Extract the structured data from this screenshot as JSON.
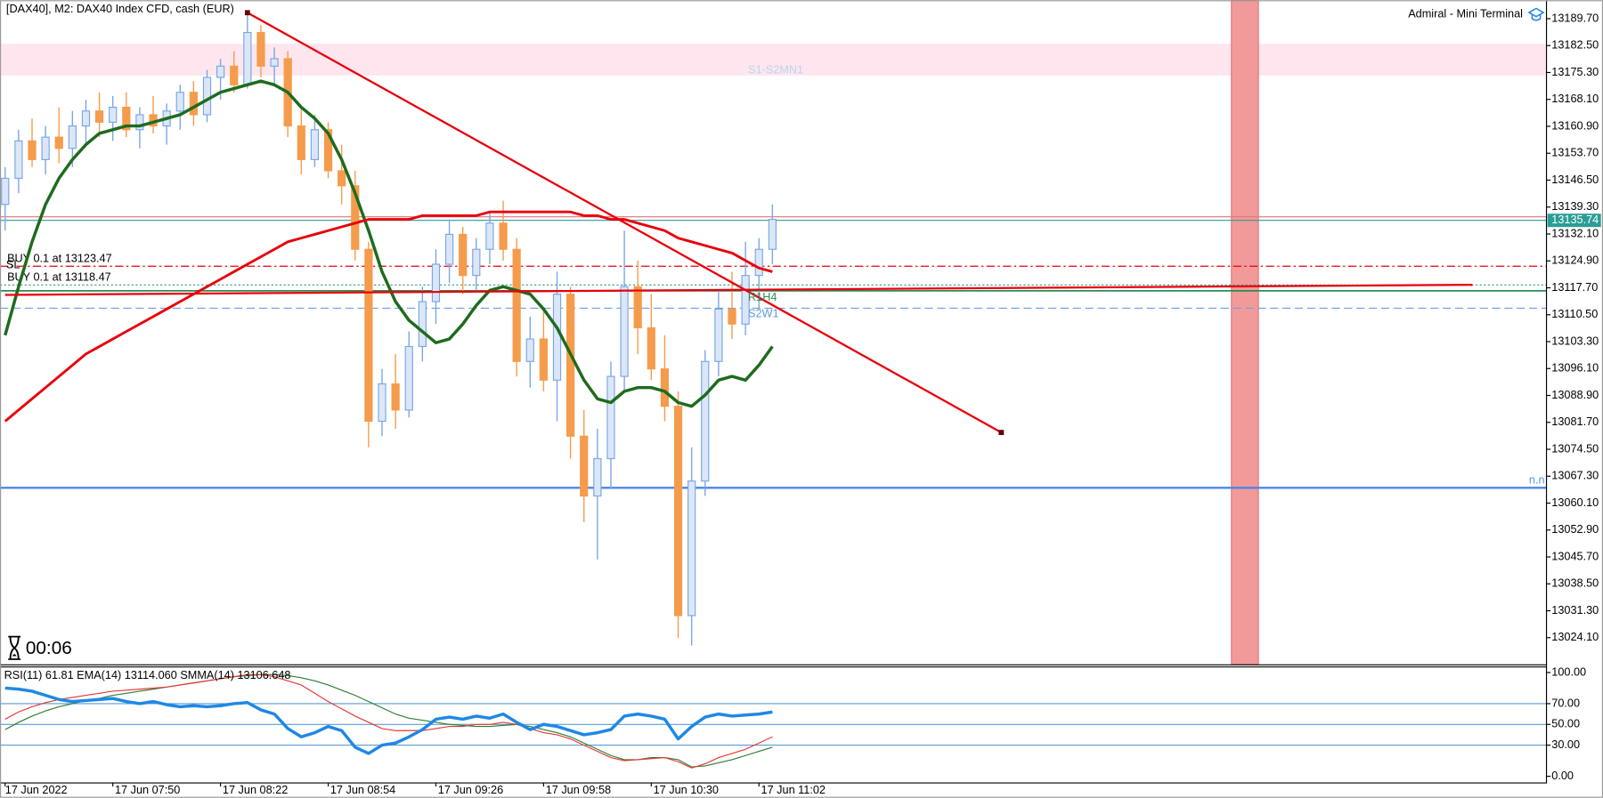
{
  "header": {
    "title": "[DAX40], M2:  DAX40 Index CFD, cash (EUR)",
    "terminal": "Admiral - Mini Terminal",
    "timer": "00:06",
    "annotations": [
      "SL",
      "R1H4",
      "S2W1",
      "n.n"
    ]
  },
  "chart_data": [
    {
      "type": "candlestick",
      "up_color": "#7aa6e6",
      "down_color": "#f59c4c",
      "open": [
        13140,
        13147,
        13157,
        13152,
        13158,
        13155,
        13161,
        13165,
        13162,
        13166,
        13160,
        13164,
        13161,
        13165,
        13170,
        13164,
        13174,
        13177,
        13172,
        13186,
        13177,
        13179,
        13161,
        13152,
        13160,
        13149,
        13145,
        13128,
        13082,
        13092,
        13085,
        13102,
        13114,
        13124,
        13132,
        13121,
        13128,
        13135,
        13128,
        13098,
        13104,
        13093,
        13116,
        13078,
        13062,
        13072,
        13094,
        13118,
        13107,
        13096,
        13086,
        13030,
        13066,
        13098,
        13112,
        13108,
        13121,
        13128
      ],
      "high": [
        13150,
        13160,
        13163,
        13161,
        13166,
        13165,
        13168,
        13170,
        13169,
        13170,
        13166,
        13169,
        13167,
        13172,
        13173,
        13176,
        13179,
        13181,
        13191,
        13188,
        13182,
        13181,
        13166,
        13164,
        13162,
        13156,
        13149,
        13130,
        13096,
        13100,
        13106,
        13118,
        13128,
        13136,
        13134,
        13131,
        13138,
        13141,
        13131,
        13110,
        13112,
        13122,
        13118,
        13085,
        13080,
        13098,
        13133,
        13125,
        13116,
        13105,
        13090,
        13075,
        13101,
        13117,
        13122,
        13130,
        13131,
        13140
      ],
      "low": [
        13133,
        13143,
        13150,
        13148,
        13151,
        13150,
        13156,
        13158,
        13157,
        13158,
        13155,
        13159,
        13156,
        13160,
        13161,
        13162,
        13168,
        13170,
        13171,
        13174,
        13172,
        13158,
        13148,
        13150,
        13147,
        13140,
        13125,
        13075,
        13078,
        13080,
        13083,
        13098,
        13108,
        13119,
        13116,
        13117,
        13124,
        13125,
        13094,
        13091,
        13090,
        13082,
        13072,
        13055,
        13045,
        13064,
        13090,
        13100,
        13093,
        13082,
        13024,
        13022,
        13062,
        13094,
        13104,
        13105,
        13112,
        13124
      ],
      "close": [
        13147,
        13157,
        13152,
        13158,
        13155,
        13161,
        13165,
        13162,
        13166,
        13160,
        13164,
        13161,
        13165,
        13170,
        13164,
        13174,
        13177,
        13172,
        13186,
        13177,
        13179,
        13161,
        13152,
        13160,
        13149,
        13145,
        13128,
        13082,
        13092,
        13085,
        13102,
        13114,
        13124,
        13132,
        13121,
        13128,
        13135,
        13128,
        13098,
        13104,
        13093,
        13116,
        13078,
        13062,
        13072,
        13094,
        13118,
        13107,
        13096,
        13086,
        13030,
        13066,
        13098,
        13112,
        13108,
        13121,
        13128,
        13136
      ],
      "lines": [
        {
          "color": "#1e6b1e",
          "width": 3,
          "values": [
            13105,
            13118,
            13130,
            13140,
            13147,
            13152,
            13156,
            13159,
            13160,
            13161,
            13161,
            13162,
            13163,
            13164,
            13166,
            13168,
            13170,
            13171,
            13172,
            13173,
            13172,
            13170,
            13166,
            13163,
            13159,
            13152,
            13143,
            13133,
            13122,
            13114,
            13109,
            13106,
            13103,
            13104,
            13108,
            13113,
            13117,
            13118,
            13117,
            13116,
            13112,
            13107,
            13100,
            13093,
            13088,
            13087,
            13090,
            13091,
            13091,
            13090,
            13087,
            13086,
            13089,
            13093,
            13094,
            13093,
            13097,
            13102
          ]
        },
        {
          "color": "#e8000b",
          "width": 2.5,
          "values": [
            13082,
            13085,
            13088,
            13091,
            13094,
            13097,
            13100,
            13102,
            13104,
            13106,
            13108,
            13110,
            13112,
            13114,
            13116,
            13118,
            13120,
            13122,
            13124,
            13126,
            13128,
            13130,
            13131,
            13132,
            13133,
            13134,
            13135,
            13136,
            13136,
            13136,
            13136,
            13137,
            13137,
            13137,
            13137,
            13137,
            13138,
            13138,
            13138,
            13138,
            13138,
            13138,
            13138,
            13137,
            13137,
            13136,
            13136,
            13135,
            13134,
            13133,
            13131,
            13130,
            13129,
            13128,
            13127,
            13125,
            13123,
            13122
          ]
        }
      ],
      "trendlines": [
        {
          "color": "#e8000b",
          "x": [
            18,
            74
          ],
          "values": [
            13191.3,
            13079.0
          ]
        },
        {
          "color": "#e8000b",
          "x": [
            0,
            109
          ],
          "values": [
            13115.8,
            13118.5
          ]
        }
      ],
      "levels": [
        {
          "value": 13064.2,
          "color": "#4a86e8",
          "style": "solid",
          "width": 2
        },
        {
          "value": 13112.24,
          "color": "#6d9eeb",
          "style": "dashed",
          "width": 1
        },
        {
          "value": 13116.9,
          "color": "#2e8b57",
          "style": "solid",
          "width": 1.5
        },
        {
          "value": 13123.47,
          "label": "BUY 0.1 at 13123.47",
          "color": "#e8000b",
          "style": "dashdot",
          "width": 1
        },
        {
          "value": 13118.47,
          "label": "BUY 0.1 at 13118.47",
          "color": "#2e9c8c",
          "style": "dotted",
          "width": 1
        },
        {
          "value": 13136.7,
          "color": "#e57373",
          "style": "solid",
          "width": 1
        }
      ],
      "zone": {
        "ylim": [
          13174.5,
          13183
        ],
        "label": "S1-S2MN1",
        "color": "#ffe6ee"
      },
      "band": {
        "x": [
          91.1,
          93.1
        ],
        "color": "#f29a9a"
      },
      "current_price": 13135.74,
      "current_color": "#2a9d96",
      "ylim": [
        13016.96,
        13194.64
      ],
      "yticks": [
        {
          "value": 13189.7,
          "label": "13189.70"
        },
        {
          "value": 13182.5,
          "label": "13182.50"
        },
        {
          "value": 13175.3,
          "label": "13175.30"
        },
        {
          "value": 13168.1,
          "label": "13168.10"
        },
        {
          "value": 13160.9,
          "label": "13160.90"
        },
        {
          "value": 13153.7,
          "label": "13153.70"
        },
        {
          "value": 13146.5,
          "label": "13146.50"
        },
        {
          "value": 13139.3,
          "label": "13139.30"
        },
        {
          "value": 13132.1,
          "label": "13132.10"
        },
        {
          "value": 13124.9,
          "label": "13124.90"
        },
        {
          "value": 13117.7,
          "label": "13117.70"
        },
        {
          "value": 13110.5,
          "label": "13110.50"
        },
        {
          "value": 13103.3,
          "label": "13103.30"
        },
        {
          "value": 13096.1,
          "label": "13096.10"
        },
        {
          "value": 13088.9,
          "label": "13088.90"
        },
        {
          "value": 13081.7,
          "label": "13081.70"
        },
        {
          "value": 13074.5,
          "label": "13074.50"
        },
        {
          "value": 13067.3,
          "label": "13067.30"
        },
        {
          "value": 13060.1,
          "label": "13060.10"
        },
        {
          "value": 13052.9,
          "label": "13052.90"
        },
        {
          "value": 13045.7,
          "label": "13045.70"
        },
        {
          "value": 13038.5,
          "label": "13038.50"
        },
        {
          "value": 13031.3,
          "label": "13031.30"
        },
        {
          "value": 13024.1,
          "label": "13024.10"
        }
      ]
    },
    {
      "type": "line",
      "title": "RSI(11) 61.81 EMA(14) 13114.060 SMMA(14) 13106.648",
      "series": [
        {
          "color": "#1e88e5",
          "width": 3,
          "values": [
            85,
            84,
            82,
            78,
            74,
            72,
            73,
            74,
            75,
            72,
            70,
            72,
            69,
            67,
            68,
            67,
            68,
            70,
            71,
            64,
            60,
            46,
            38,
            42,
            48,
            44,
            28,
            22,
            30,
            32,
            38,
            45,
            55,
            57,
            55,
            58,
            56,
            60,
            52,
            45,
            50,
            48,
            44,
            40,
            42,
            45,
            58,
            60,
            58,
            55,
            36,
            48,
            57,
            60,
            58,
            59,
            60,
            62
          ]
        },
        {
          "color": "#e53935",
          "width": 1,
          "values": [
            55,
            62,
            67,
            71,
            74,
            76,
            78,
            80,
            82,
            83,
            84,
            85,
            86,
            88,
            90,
            92,
            94,
            96,
            98,
            98,
            96,
            92,
            88,
            80,
            72,
            65,
            58,
            52,
            46,
            44,
            44,
            44,
            46,
            48,
            48,
            50,
            50,
            52,
            50,
            46,
            42,
            40,
            36,
            30,
            24,
            18,
            15,
            16,
            17,
            18,
            14,
            8,
            12,
            18,
            22,
            26,
            32,
            38
          ]
        },
        {
          "color": "#2e7d32",
          "width": 1,
          "values": [
            45,
            52,
            58,
            63,
            67,
            70,
            73,
            75,
            78,
            80,
            82,
            84,
            86,
            88,
            90,
            92,
            94,
            96,
            97,
            98,
            98,
            97,
            95,
            92,
            88,
            83,
            78,
            72,
            66,
            60,
            56,
            54,
            52,
            50,
            49,
            48,
            48,
            49,
            50,
            48,
            45,
            42,
            38,
            32,
            26,
            20,
            16,
            16,
            18,
            18,
            16,
            9,
            10,
            13,
            16,
            20,
            24,
            28
          ]
        }
      ],
      "levels": [
        70,
        50,
        30
      ],
      "level_color": "#5b9bd5",
      "ylim": [
        -5.9,
        105.9
      ],
      "yticks": [
        {
          "value": 100,
          "label": "100.00"
        },
        {
          "value": 70,
          "label": "70.00"
        },
        {
          "value": 50,
          "label": "50.00"
        },
        {
          "value": 30,
          "label": "30.00"
        },
        {
          "value": 0,
          "label": "0.00"
        }
      ],
      "x_labels": [
        "17 Jun 2022",
        "17 Jun 07:50",
        "17 Jun 08:22",
        "17 Jun 08:54",
        "17 Jun 09:26",
        "17 Jun 09:58",
        "17 Jun 10:30",
        "17 Jun 11:02"
      ]
    }
  ]
}
